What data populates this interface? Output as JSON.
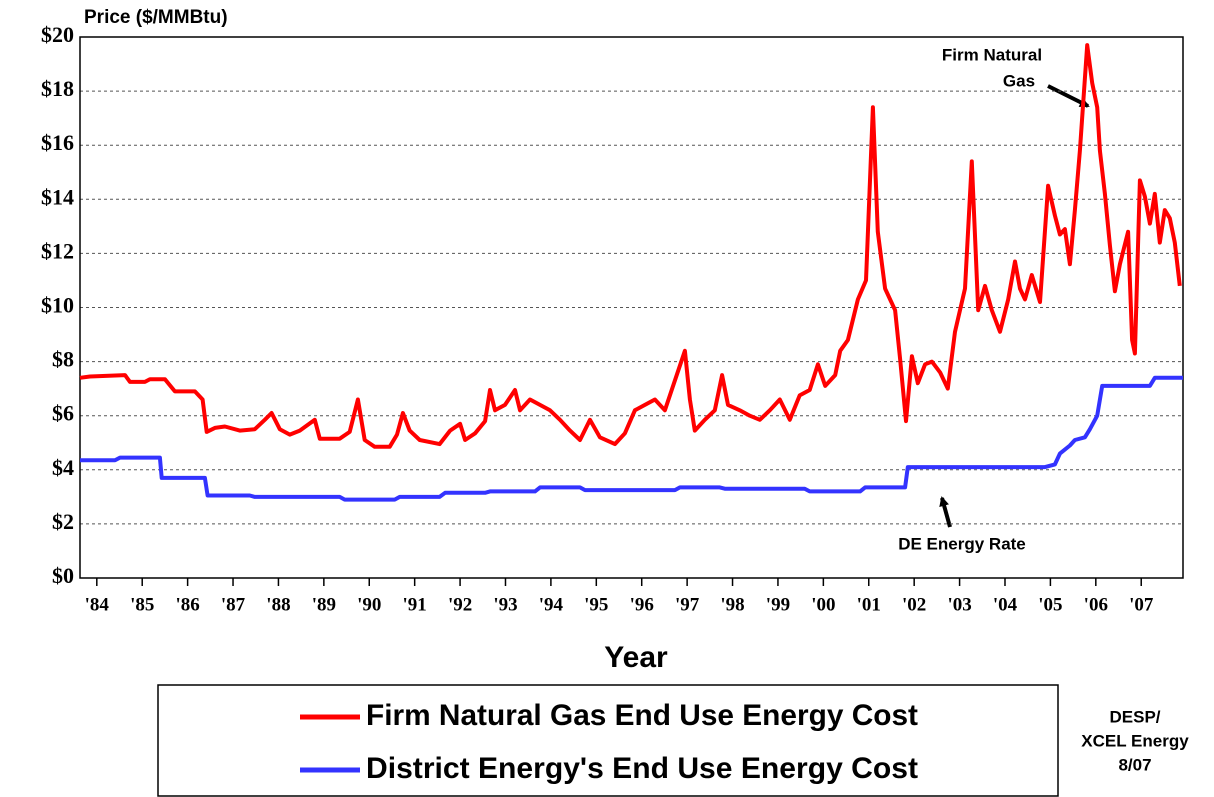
{
  "chart_data": {
    "type": "line",
    "y_label": "Price ($/MMBtu)",
    "x_label": "Year",
    "xlim": [
      1983.63,
      2007.92
    ],
    "xticks": [
      {
        "value": 1984,
        "label": "'84"
      },
      {
        "value": 1985,
        "label": "'85"
      },
      {
        "value": 1986,
        "label": "'86"
      },
      {
        "value": 1987,
        "label": "'87"
      },
      {
        "value": 1988,
        "label": "'88"
      },
      {
        "value": 1989,
        "label": "'89"
      },
      {
        "value": 1990,
        "label": "'90"
      },
      {
        "value": 1991,
        "label": "'91"
      },
      {
        "value": 1992,
        "label": "'92"
      },
      {
        "value": 1993,
        "label": "'93"
      },
      {
        "value": 1994,
        "label": "'94"
      },
      {
        "value": 1995,
        "label": "'95"
      },
      {
        "value": 1996,
        "label": "'96"
      },
      {
        "value": 1997,
        "label": "'97"
      },
      {
        "value": 1998,
        "label": "'98"
      },
      {
        "value": 1999,
        "label": "'99"
      },
      {
        "value": 2000,
        "label": "'00"
      },
      {
        "value": 2001,
        "label": "'01"
      },
      {
        "value": 2002,
        "label": "'02"
      },
      {
        "value": 2003,
        "label": "'03"
      },
      {
        "value": 2004,
        "label": "'04"
      },
      {
        "value": 2005,
        "label": "'05"
      },
      {
        "value": 2006,
        "label": "'06"
      },
      {
        "value": 2007,
        "label": "'07"
      }
    ],
    "ylim": [
      0,
      20
    ],
    "yticks": [
      {
        "value": 0,
        "label": "$0"
      },
      {
        "value": 2,
        "label": "$2"
      },
      {
        "value": 4,
        "label": "$4"
      },
      {
        "value": 6,
        "label": "$6"
      },
      {
        "value": 8,
        "label": "$8"
      },
      {
        "value": 10,
        "label": "$10"
      },
      {
        "value": 12,
        "label": "$12"
      },
      {
        "value": 14,
        "label": "$14"
      },
      {
        "value": 16,
        "label": "$16"
      },
      {
        "value": 18,
        "label": "$18"
      },
      {
        "value": 20,
        "label": "$20"
      }
    ],
    "grid": true,
    "legend": "bottom",
    "annotations": [
      {
        "lines": [
          "Firm Natural",
          "Gas"
        ]
      },
      {
        "lines": [
          "DE Energy Rate"
        ]
      }
    ],
    "note": [
      "DESP/",
      "XCEL Energy",
      "8/07"
    ],
    "series": [
      {
        "name": "Firm Natural Gas End Use Energy Cost",
        "color": "#ff0000",
        "x": [
          1983.63,
          1983.85,
          1984.62,
          1984.73,
          1985.06,
          1985.17,
          1985.5,
          1985.72,
          1986.16,
          1986.33,
          1986.42,
          1986.6,
          1986.82,
          1987.15,
          1987.48,
          1987.7,
          1987.85,
          1988.03,
          1988.25,
          1988.47,
          1988.8,
          1988.91,
          1989.35,
          1989.57,
          1989.75,
          1989.9,
          1990.12,
          1990.45,
          1990.61,
          1990.74,
          1990.89,
          1991.11,
          1991.55,
          1991.78,
          1992.0,
          1992.11,
          1992.33,
          1992.55,
          1992.66,
          1992.77,
          1992.99,
          1993.21,
          1993.32,
          1993.54,
          1993.76,
          1993.98,
          1994.2,
          1994.42,
          1994.64,
          1994.86,
          1995.08,
          1995.41,
          1995.63,
          1995.85,
          1996.07,
          1996.29,
          1996.51,
          1996.73,
          1996.95,
          1997.06,
          1997.17,
          1997.39,
          1997.61,
          1997.77,
          1997.9,
          1998.16,
          1998.38,
          1998.6,
          1998.82,
          1999.04,
          1999.26,
          1999.48,
          1999.7,
          1999.88,
          2000.04,
          2000.26,
          2000.37,
          2000.54,
          2000.76,
          2000.94,
          2001.09,
          2001.2,
          2001.36,
          2001.58,
          2001.69,
          2001.82,
          2001.95,
          2002.08,
          2002.24,
          2002.39,
          2002.57,
          2002.74,
          2002.9,
          2003.12,
          2003.27,
          2003.41,
          2003.56,
          2003.71,
          2003.89,
          2004.07,
          2004.22,
          2004.33,
          2004.44,
          2004.59,
          2004.77,
          2004.95,
          2005.1,
          2005.21,
          2005.32,
          2005.43,
          2005.54,
          2005.65,
          2005.81,
          2005.92,
          2006.03,
          2006.09,
          2006.2,
          2006.31,
          2006.42,
          2006.53,
          2006.71,
          2006.8,
          2006.86,
          2006.97,
          2007.08,
          2007.19,
          2007.3,
          2007.41,
          2007.52,
          2007.63,
          2007.74,
          2007.85
        ],
        "values": [
          7.4,
          7.45,
          7.5,
          7.25,
          7.25,
          7.35,
          7.35,
          6.9,
          6.9,
          6.6,
          5.4,
          5.55,
          5.6,
          5.45,
          5.5,
          5.85,
          6.1,
          5.5,
          5.3,
          5.45,
          5.85,
          5.15,
          5.15,
          5.4,
          6.6,
          5.1,
          4.85,
          4.85,
          5.3,
          6.1,
          5.45,
          5.1,
          4.95,
          5.45,
          5.7,
          5.1,
          5.35,
          5.8,
          6.95,
          6.2,
          6.4,
          6.95,
          6.2,
          6.6,
          6.4,
          6.2,
          5.85,
          5.45,
          5.1,
          5.85,
          5.2,
          4.95,
          5.35,
          6.2,
          6.4,
          6.6,
          6.2,
          7.3,
          8.4,
          6.6,
          5.45,
          5.85,
          6.2,
          7.5,
          6.4,
          6.2,
          6.0,
          5.85,
          6.2,
          6.6,
          5.85,
          6.75,
          6.95,
          7.9,
          7.1,
          7.5,
          8.4,
          8.8,
          10.3,
          11.0,
          17.4,
          12.8,
          10.7,
          9.9,
          8.1,
          5.8,
          8.2,
          7.2,
          7.9,
          8.0,
          7.6,
          7.0,
          9.1,
          10.7,
          15.4,
          9.9,
          10.8,
          9.9,
          9.1,
          10.3,
          11.7,
          10.7,
          10.3,
          11.2,
          10.2,
          14.5,
          13.4,
          12.7,
          12.9,
          11.6,
          13.6,
          15.8,
          19.7,
          18.3,
          17.4,
          15.8,
          14.2,
          12.3,
          10.6,
          11.6,
          12.8,
          8.8,
          8.3,
          14.7,
          14.1,
          13.1,
          14.2,
          12.4,
          13.6,
          13.3,
          12.4,
          10.8
        ]
      },
      {
        "name": "District Energy's End Use Energy Cost",
        "color": "#3333ff",
        "x": [
          1983.63,
          1984.4,
          1984.51,
          1985.39,
          1985.43,
          1986.38,
          1986.44,
          1987.37,
          1987.48,
          1989.35,
          1989.46,
          1990.56,
          1990.67,
          1991.55,
          1991.67,
          1992.55,
          1992.66,
          1993.65,
          1993.76,
          1994.64,
          1994.75,
          1996.73,
          1996.84,
          1997.72,
          1997.83,
          1999.59,
          1999.7,
          2000.81,
          2000.92,
          2001.8,
          2001.86,
          2004.88,
          2005.1,
          2005.21,
          2005.43,
          2005.54,
          2005.76,
          2005.87,
          2006.03,
          2006.14,
          2007.19,
          2007.3,
          2007.92
        ],
        "values": [
          4.35,
          4.35,
          4.45,
          4.45,
          3.7,
          3.7,
          3.05,
          3.05,
          3.0,
          3.0,
          2.9,
          2.9,
          3.0,
          3.0,
          3.15,
          3.15,
          3.2,
          3.2,
          3.35,
          3.35,
          3.25,
          3.25,
          3.35,
          3.35,
          3.3,
          3.3,
          3.2,
          3.2,
          3.35,
          3.35,
          4.1,
          4.1,
          4.2,
          4.6,
          4.9,
          5.1,
          5.2,
          5.5,
          6.0,
          7.1,
          7.1,
          7.4,
          7.4
        ]
      }
    ]
  }
}
